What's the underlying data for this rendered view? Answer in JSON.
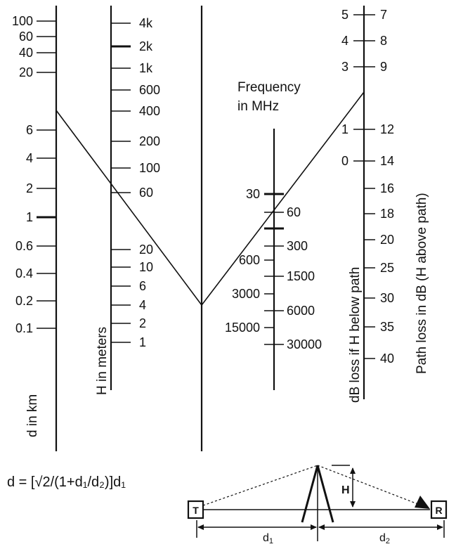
{
  "axes": {
    "d_km": {
      "label": "d in km",
      "ticks": [
        "100",
        "60",
        "40",
        "20",
        "6",
        "4",
        "2",
        "1",
        "0.6",
        "0.4",
        "0.2",
        "0.1"
      ]
    },
    "h_m": {
      "label": "H in meters",
      "ticks": [
        "4k",
        "2k",
        "1k",
        "600",
        "400",
        "200",
        "100",
        "60",
        "20",
        "10",
        "6",
        "4",
        "2",
        "1"
      ]
    },
    "freq": {
      "label_line1": "Frequency",
      "label_line2": "in MHz",
      "ticks_left": [
        "30",
        "600",
        "3000",
        "15000"
      ],
      "ticks_right": [
        "60",
        "300",
        "1500",
        "6000",
        "30000"
      ]
    },
    "db_below": {
      "label": "dB loss if H below path",
      "ticks": [
        "5",
        "4",
        "3",
        "1",
        "0"
      ]
    },
    "db_above": {
      "label": "Path loss in dB (H above path)",
      "ticks": [
        "7",
        "8",
        "9",
        "12",
        "14",
        "16",
        "18",
        "20",
        "25",
        "30",
        "35",
        "40"
      ]
    }
  },
  "formula": "d = [√2/(1+d₁/d₂)]d₁",
  "inset": {
    "tx_label": "T",
    "rx_label": "R",
    "h_label": "H",
    "d1_label": "d",
    "d1_sub": "1",
    "d2_label": "d",
    "d2_sub": "2"
  }
}
